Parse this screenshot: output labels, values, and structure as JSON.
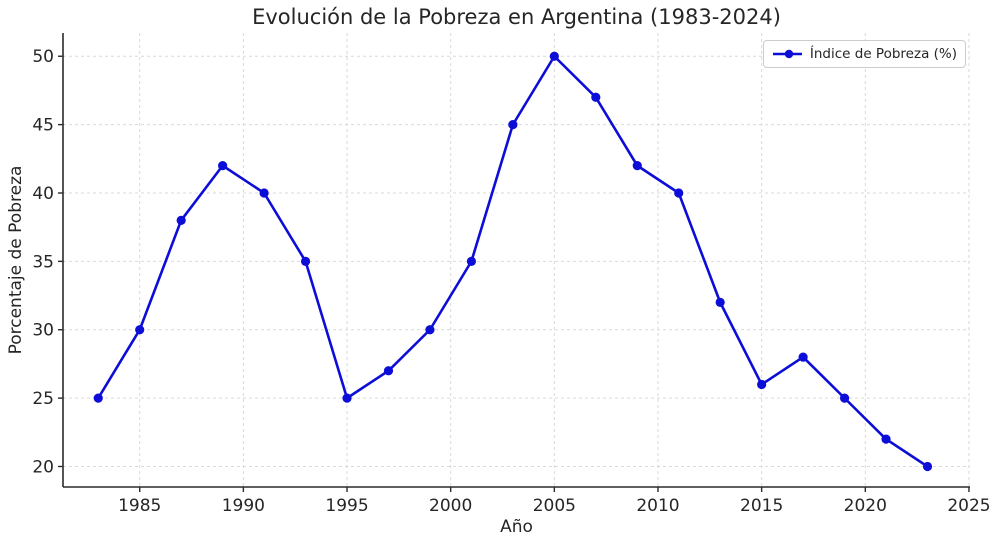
{
  "chart_data": {
    "type": "line",
    "title": "Evolución de la Pobreza en Argentina (1983-2024)",
    "xlabel": "Año",
    "ylabel": "Porcentaje de Pobreza",
    "legend": {
      "position": "upper right",
      "entries": [
        "Índice de Pobreza (%)"
      ]
    },
    "x": [
      1983,
      1985,
      1987,
      1989,
      1991,
      1993,
      1995,
      1997,
      1999,
      2001,
      2003,
      2005,
      2007,
      2009,
      2011,
      2013,
      2015,
      2017,
      2019,
      2021,
      2023
    ],
    "series": [
      {
        "name": "Índice de Pobreza (%)",
        "values": [
          25,
          30,
          38,
          42,
          40,
          35,
          25,
          27,
          30,
          35,
          45,
          50,
          47,
          42,
          40,
          32,
          26,
          28,
          25,
          22,
          20
        ]
      }
    ],
    "xlim": [
      1981.3,
      2025.05
    ],
    "ylim": [
      18.5,
      51.7
    ],
    "xticks": [
      1985,
      1990,
      1995,
      2000,
      2005,
      2010,
      2015,
      2020,
      2025
    ],
    "yticks": [
      20,
      25,
      30,
      35,
      40,
      45,
      50
    ],
    "grid": true,
    "grid_style": "dashed",
    "marker": "circle",
    "colors": {
      "line": "#0d0dd8",
      "grid": "#d9d9d9",
      "spine": "#2b2b2b",
      "text": "#262626",
      "background": "#ffffff",
      "legend_border": "#cccccc"
    }
  }
}
